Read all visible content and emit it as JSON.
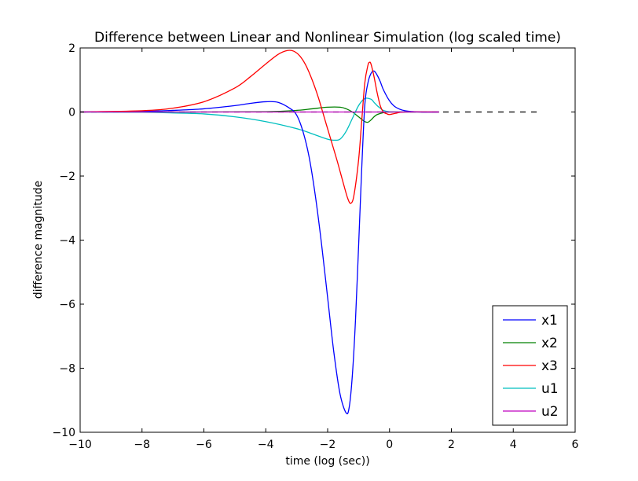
{
  "chart_data": {
    "type": "line",
    "title": "Difference between Linear and Nonlinear Simulation (log scaled time)",
    "xlabel": "time (log (sec))",
    "ylabel": "difference magnitude",
    "xlim": [
      -10,
      6
    ],
    "ylim": [
      -10,
      2
    ],
    "xticks": [
      -10,
      -8,
      -6,
      -4,
      -2,
      0,
      2,
      4,
      6
    ],
    "yticks": [
      -10,
      -8,
      -6,
      -4,
      -2,
      0,
      2
    ],
    "xtick_labels": [
      "−10",
      "−8",
      "−6",
      "−4",
      "−2",
      "0",
      "2",
      "4",
      "6"
    ],
    "ytick_labels": [
      "−10",
      "−8",
      "−6",
      "−4",
      "−2",
      "0",
      "2"
    ],
    "grid": false,
    "legend_position": "lower-right",
    "reference_line": {
      "style": "dashed",
      "color": "#000000",
      "x": [
        -10,
        4.8
      ],
      "y": [
        0,
        0
      ]
    },
    "series": [
      {
        "name": "x1",
        "color": "#0000ff",
        "x": [
          -10,
          -8,
          -7,
          -6,
          -5,
          -4.5,
          -4,
          -3.6,
          -3.2,
          -3,
          -2.8,
          -2.6,
          -2.4,
          -2.2,
          -2,
          -1.8,
          -1.6,
          -1.4,
          -1.3,
          -1.2,
          -1.1,
          -1,
          -0.9,
          -0.8,
          -0.7,
          -0.6,
          -0.5,
          -0.4,
          -0.3,
          -0.2,
          0,
          0.2,
          0.5,
          1,
          1.6
        ],
        "y": [
          0,
          0.02,
          0.05,
          0.1,
          0.2,
          0.27,
          0.32,
          0.3,
          0.1,
          -0.1,
          -0.6,
          -1.4,
          -2.6,
          -4.1,
          -5.8,
          -7.5,
          -8.8,
          -9.4,
          -9.2,
          -8.2,
          -6.5,
          -4.2,
          -1.8,
          0.2,
          0.9,
          1.2,
          1.28,
          1.15,
          0.95,
          0.7,
          0.35,
          0.15,
          0.04,
          0,
          0
        ]
      },
      {
        "name": "x2",
        "color": "#008000",
        "x": [
          -10,
          -6,
          -4,
          -3,
          -2.5,
          -2,
          -1.6,
          -1.4,
          -1.2,
          -1,
          -0.8,
          -0.7,
          -0.6,
          -0.5,
          -0.4,
          -0.2,
          0,
          0.5,
          1.6
        ],
        "y": [
          0,
          0,
          0.01,
          0.05,
          0.1,
          0.15,
          0.15,
          0.1,
          0,
          -0.15,
          -0.3,
          -0.32,
          -0.25,
          -0.15,
          -0.08,
          -0.02,
          0,
          0,
          0
        ]
      },
      {
        "name": "x3",
        "color": "#ff0000",
        "x": [
          -10,
          -8,
          -7,
          -6,
          -5,
          -4.5,
          -4,
          -3.6,
          -3.3,
          -3.1,
          -2.9,
          -2.7,
          -2.5,
          -2.3,
          -2.1,
          -1.9,
          -1.7,
          -1.5,
          -1.35,
          -1.25,
          -1.15,
          -1,
          -0.9,
          -0.8,
          -0.7,
          -0.65,
          -0.6,
          -0.5,
          -0.4,
          -0.3,
          -0.2,
          -0.1,
          0,
          0.2,
          0.5,
          1.6
        ],
        "y": [
          0,
          0.04,
          0.12,
          0.32,
          0.75,
          1.1,
          1.5,
          1.8,
          1.92,
          1.9,
          1.75,
          1.45,
          1.0,
          0.45,
          -0.2,
          -0.85,
          -1.5,
          -2.2,
          -2.7,
          -2.85,
          -2.6,
          -1.5,
          -0.3,
          0.9,
          1.45,
          1.55,
          1.5,
          1.1,
          0.6,
          0.2,
          0,
          -0.05,
          -0.08,
          -0.04,
          0,
          0
        ]
      },
      {
        "name": "u1",
        "color": "#00bfbf",
        "x": [
          -10,
          -8,
          -7,
          -6,
          -5,
          -4,
          -3,
          -2.5,
          -2,
          -1.8,
          -1.6,
          -1.4,
          -1.2,
          -1,
          -0.8,
          -0.6,
          -0.5,
          -0.4,
          -0.3,
          -0.2,
          0,
          0.3,
          0.6,
          1,
          1.6
        ],
        "y": [
          0,
          -0.01,
          -0.03,
          -0.06,
          -0.15,
          -0.3,
          -0.52,
          -0.68,
          -0.85,
          -0.88,
          -0.85,
          -0.6,
          -0.2,
          0.2,
          0.42,
          0.4,
          0.3,
          0.2,
          0.12,
          0.05,
          0.01,
          0,
          0,
          0,
          0
        ]
      },
      {
        "name": "u2",
        "color": "#bf00bf",
        "x": [
          -10,
          -4,
          0,
          1.6
        ],
        "y": [
          0,
          0,
          0,
          0
        ]
      }
    ]
  }
}
